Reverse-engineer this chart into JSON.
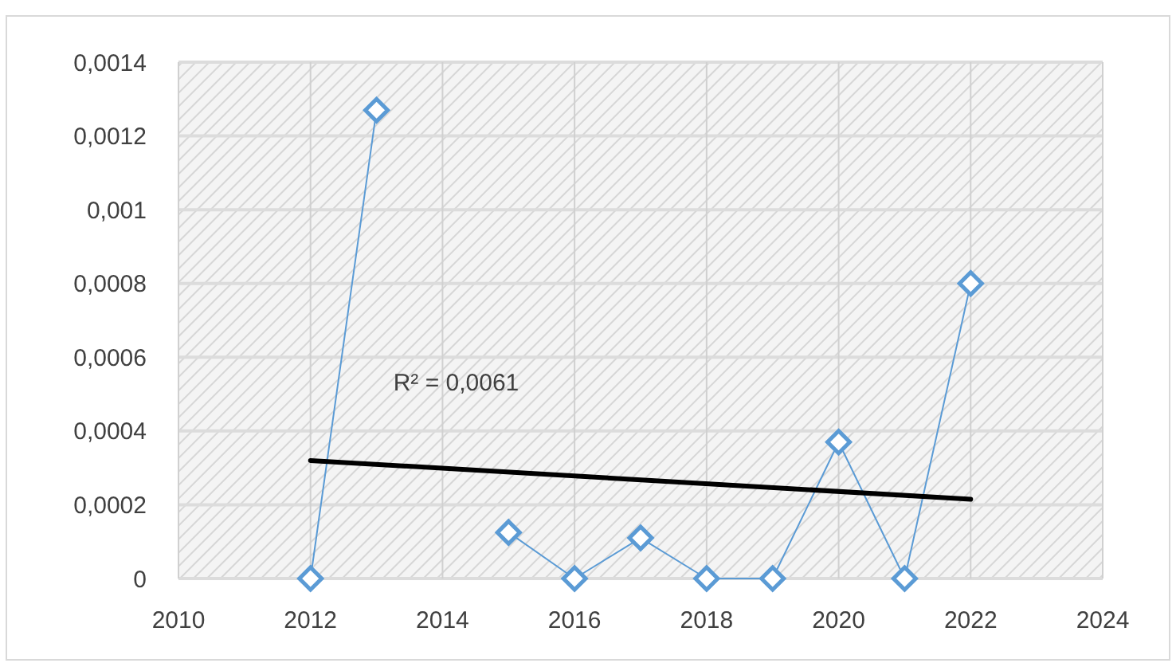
{
  "chart_data": {
    "type": "line",
    "x": [
      2012,
      2013,
      2014,
      2015,
      2016,
      2017,
      2018,
      2019,
      2020,
      2021,
      2022
    ],
    "series": [
      {
        "color": "#5b9bd5",
        "marker": "diamond",
        "values": [
          0,
          0.00127,
          null,
          0.000125,
          0,
          0.00011,
          0,
          0,
          0.00037,
          0,
          0.0008
        ]
      },
      {
        "type": "line",
        "color": "#000000",
        "marker": "none",
        "x": [
          2012,
          2022
        ],
        "values": [
          0.00032,
          0.000215
        ]
      }
    ],
    "xlim": [
      2010,
      2024
    ],
    "xticks": [
      2010,
      2012,
      2014,
      2016,
      2018,
      2020,
      2022,
      2024
    ],
    "ylim": [
      0,
      0.0014
    ],
    "yticks": [
      0,
      {
        "value": 0.0002,
        "label": "0,0002"
      },
      {
        "value": 0.0004,
        "label": "0,0004"
      },
      {
        "value": 0.0006,
        "label": "0,0006"
      },
      {
        "value": 0.0008,
        "label": "0,0008"
      },
      {
        "value": 0.001,
        "label": "0,001"
      },
      {
        "value": 0.0012,
        "label": "0,0012"
      },
      {
        "value": 0.0014,
        "label": "0,0014"
      }
    ],
    "grid": true,
    "annotations": [
      "R² = 0,0061"
    ]
  }
}
